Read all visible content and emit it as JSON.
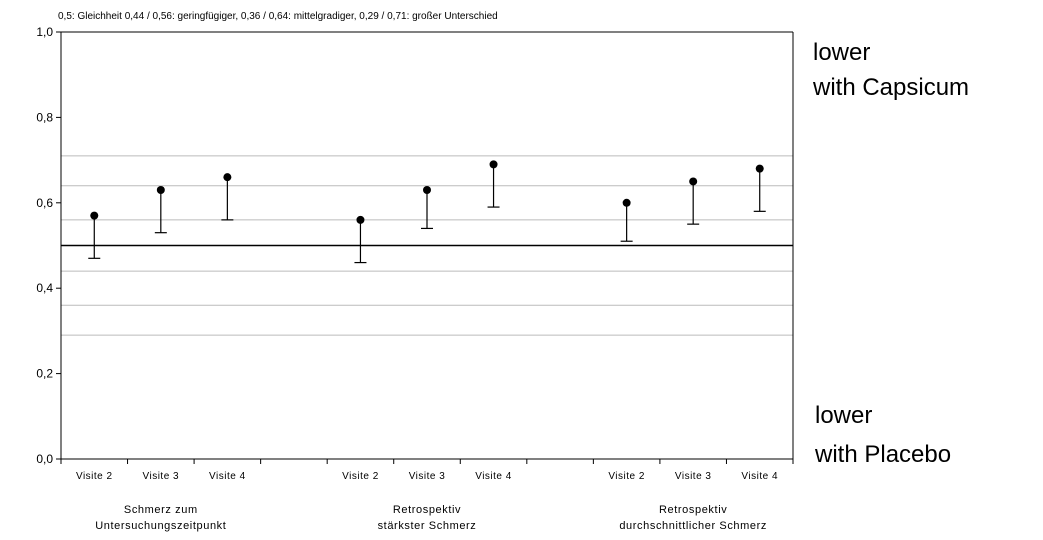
{
  "chart_data": {
    "type": "scatter",
    "subtype": "point-with-error-bars",
    "annotation": "0,5: Gleichheit 0,44 / 0,56: geringfügiger, 0,36 / 0,64: mittelgradiger, 0,29 / 0,71: großer Unterschied",
    "ylim": [
      0,
      1
    ],
    "y_ticks": [
      "0,0",
      "0,2",
      "0,4",
      "0,6",
      "0,8",
      "1,0"
    ],
    "y_tick_values": [
      0,
      0.2,
      0.4,
      0.6,
      0.8,
      1.0
    ],
    "reference_line": 0.5,
    "threshold_lines": [
      0.29,
      0.36,
      0.44,
      0.56,
      0.64,
      0.71
    ],
    "grid": false,
    "groups": [
      {
        "label_lines": [
          "Schmerz zum",
          "Untersuchungszeitpunkt"
        ],
        "points": [
          {
            "category": "Visite 2",
            "value": 0.57,
            "lower": 0.47
          },
          {
            "category": "Visite 3",
            "value": 0.63,
            "lower": 0.53
          },
          {
            "category": "Visite 4",
            "value": 0.66,
            "lower": 0.56
          }
        ]
      },
      {
        "label_lines": [
          "Retrospektiv",
          "stärkster Schmerz"
        ],
        "points": [
          {
            "category": "Visite 2",
            "value": 0.56,
            "lower": 0.46
          },
          {
            "category": "Visite 3",
            "value": 0.63,
            "lower": 0.54
          },
          {
            "category": "Visite 4",
            "value": 0.69,
            "lower": 0.59
          }
        ]
      },
      {
        "label_lines": [
          "Retrospektiv",
          "durchschnittlicher Schmerz"
        ],
        "points": [
          {
            "category": "Visite 2",
            "value": 0.6,
            "lower": 0.51
          },
          {
            "category": "Visite 3",
            "value": 0.65,
            "lower": 0.55
          },
          {
            "category": "Visite 4",
            "value": 0.68,
            "lower": 0.58
          }
        ]
      }
    ],
    "side_labels": {
      "top": [
        "lower",
        "with Capsicum"
      ],
      "bottom": [
        "lower",
        "with Placebo"
      ]
    },
    "colors": {
      "axis": "#000000",
      "reference_line": "#000000",
      "threshold_lines": "#bbbbbb",
      "points": "#000000"
    }
  }
}
